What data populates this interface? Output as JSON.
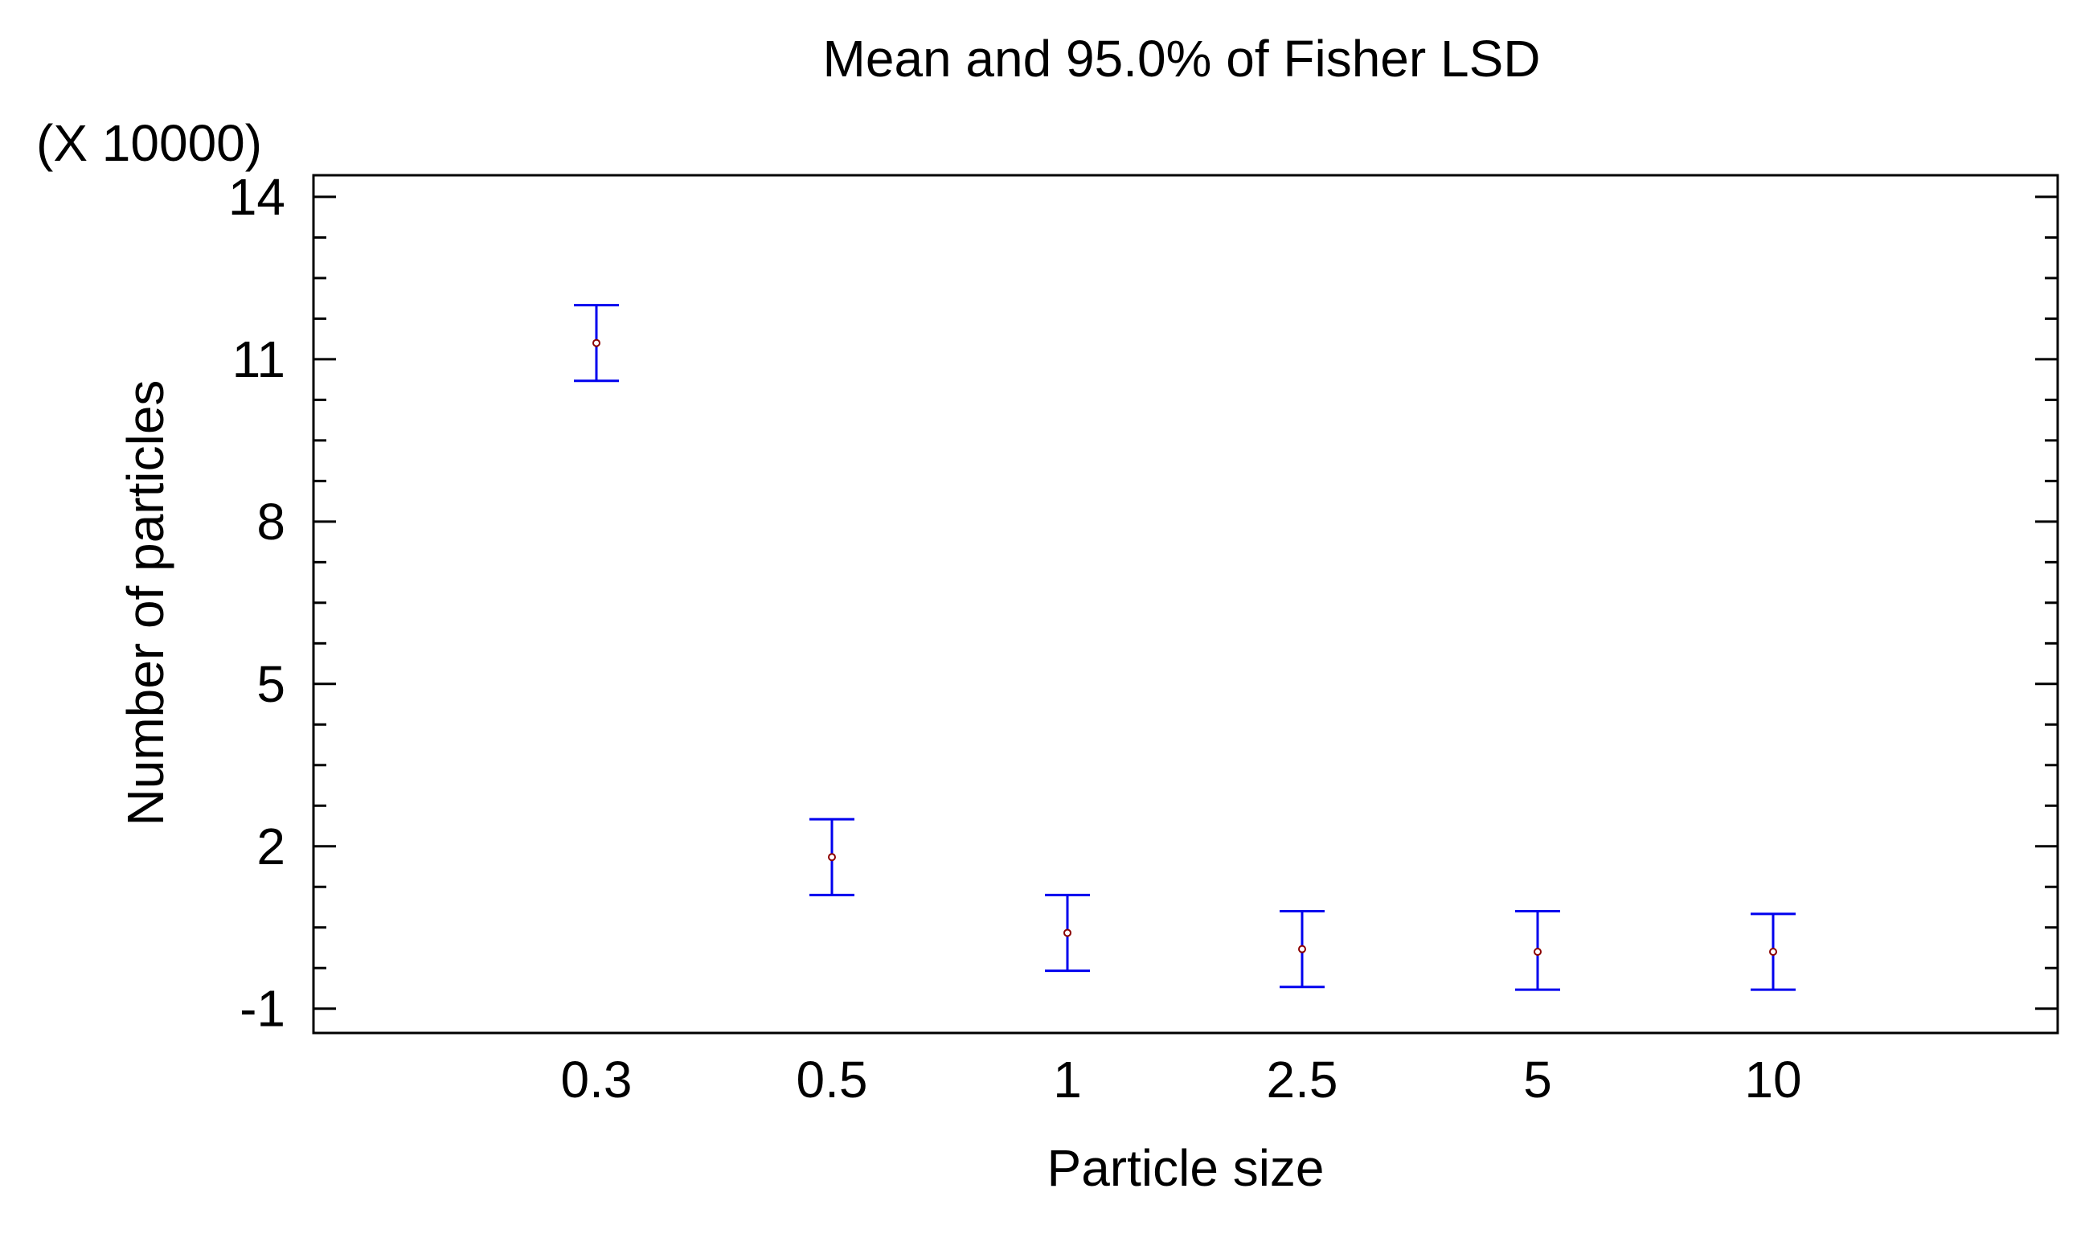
{
  "chart_data": {
    "type": "scatter",
    "title": "Mean and 95.0% of Fisher LSD",
    "xlabel": "Particle size",
    "ylabel": "Number of particles",
    "y_multiplier_label": "(X 10000)",
    "categories": [
      "0.3",
      "0.5",
      "1",
      "2.5",
      "5",
      "10"
    ],
    "series": [
      {
        "means": [
          11.3,
          1.8,
          0.4,
          0.1,
          0.05,
          0.05
        ],
        "lower": [
          10.6,
          1.1,
          -0.3,
          -0.6,
          -0.65,
          -0.65
        ],
        "upper": [
          12.0,
          2.5,
          1.1,
          0.8,
          0.8,
          0.75
        ]
      }
    ],
    "yticks": [
      "-1",
      "2",
      "5",
      "8",
      "11",
      "14"
    ],
    "ytick_values": [
      -1,
      2,
      5,
      8,
      11,
      14
    ],
    "ylim": [
      -1.45,
      14.4
    ],
    "grid": false,
    "colors": {
      "errorbar": "#0000ee",
      "mean_marker": "#8b0000",
      "axis": "#000000"
    }
  }
}
